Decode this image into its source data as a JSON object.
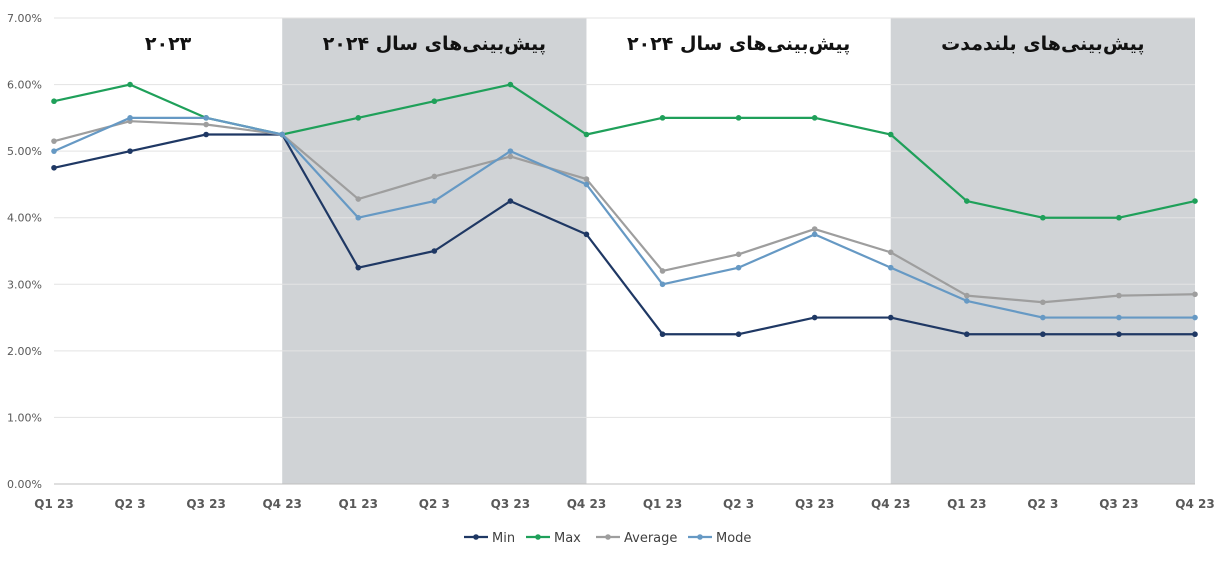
{
  "chart_data": {
    "type": "line",
    "x": [
      "Q1 23",
      "Q2 3",
      "Q3 23",
      "Q4 23",
      "Q1 23",
      "Q2 3",
      "Q3 23",
      "Q4 23",
      "Q1 23",
      "Q2 3",
      "Q3 23",
      "Q4 23",
      "Q1 23",
      "Q2 3",
      "Q3 23",
      "Q4 23"
    ],
    "ylim": [
      0,
      7
    ],
    "yticks": [
      "0.00%",
      "1.00%",
      "2.00%",
      "3.00%",
      "4.00%",
      "5.00%",
      "6.00%",
      "7.00%"
    ],
    "grid": true,
    "legend_position": "bottom",
    "regions": [
      {
        "label": "۲۰۲۳",
        "from": 0,
        "to": 3,
        "shaded": false
      },
      {
        "label": "پیش‌بینی‌های سال ۲۰۲۴",
        "from": 3,
        "to": 7,
        "shaded": true
      },
      {
        "label": "پیش‌بینی‌های سال ۲۰۲۴",
        "from": 7,
        "to": 11,
        "shaded": false
      },
      {
        "label": "پیش‌بینی‌های بلندمدت",
        "from": 11,
        "to": 15,
        "shaded": true
      }
    ],
    "series": [
      {
        "name": "Min",
        "color": "#1f3864",
        "values": [
          4.75,
          5.0,
          5.25,
          5.25,
          3.25,
          3.5,
          4.25,
          3.75,
          2.25,
          2.25,
          2.5,
          2.5,
          2.25,
          2.25,
          2.25,
          2.25
        ]
      },
      {
        "name": "Max",
        "color": "#1fa05a",
        "values": [
          5.75,
          6.0,
          5.5,
          5.25,
          5.5,
          5.75,
          6.0,
          5.25,
          5.5,
          5.5,
          5.5,
          5.25,
          4.25,
          4.0,
          4.0,
          4.25
        ]
      },
      {
        "name": "Average",
        "color": "#9e9e9e",
        "values": [
          5.15,
          5.45,
          5.4,
          5.25,
          4.28,
          4.62,
          4.92,
          4.58,
          3.2,
          3.45,
          3.83,
          3.48,
          2.83,
          2.73,
          2.83,
          2.85
        ]
      },
      {
        "name": "Mode",
        "color": "#6699c4",
        "values": [
          5.0,
          5.5,
          5.5,
          5.25,
          4.0,
          4.25,
          5.0,
          4.5,
          3.0,
          3.25,
          3.75,
          3.25,
          2.75,
          2.5,
          2.5,
          2.5
        ]
      }
    ]
  }
}
